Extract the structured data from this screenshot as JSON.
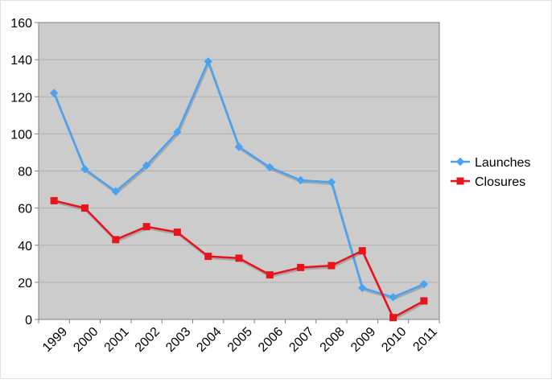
{
  "chart_data": {
    "type": "line",
    "categories": [
      "1999",
      "2000",
      "2001",
      "2002",
      "2003",
      "2004",
      "2005",
      "2006",
      "2007",
      "2008",
      "2009",
      "2010",
      "2011"
    ],
    "ylim": [
      0,
      160
    ],
    "y_ticks": [
      0,
      20,
      40,
      60,
      80,
      100,
      120,
      140,
      160
    ],
    "grid": true,
    "legend_position": "right",
    "plot_background": "#cccccc",
    "series": [
      {
        "name": "Launches",
        "color": "#4aa3f0",
        "marker": "diamond",
        "values": [
          122,
          81,
          69,
          83,
          101,
          139,
          93,
          82,
          75,
          74,
          17,
          12,
          19
        ]
      },
      {
        "name": "Closures",
        "color": "#e8141c",
        "marker": "square",
        "values": [
          64,
          60,
          43,
          50,
          47,
          34,
          33,
          24,
          28,
          29,
          37,
          1,
          10
        ]
      }
    ]
  }
}
